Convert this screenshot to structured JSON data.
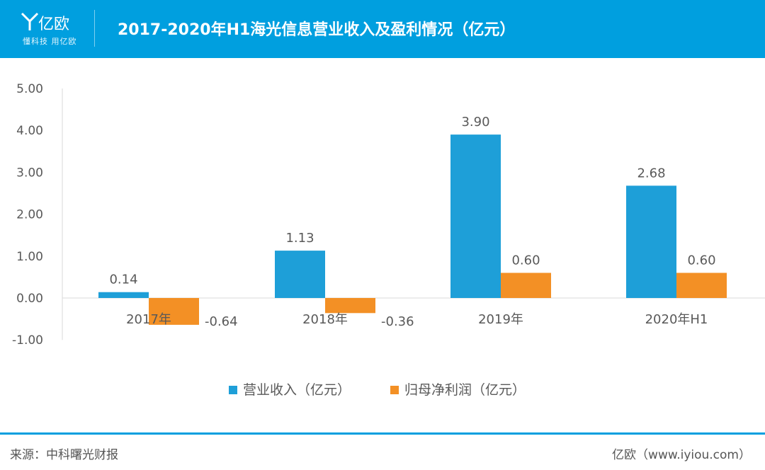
{
  "header": {
    "brand": "亿欧",
    "slogan": "懂科技 用亿欧",
    "title": "2017-2020年H1海光信息营业收入及盈利情况（亿元）"
  },
  "chart_data": {
    "type": "bar",
    "categories": [
      "2017年",
      "2018年",
      "2019年",
      "2020年H1"
    ],
    "series": [
      {
        "name": "营业收入（亿元）",
        "values": [
          0.14,
          1.13,
          3.9,
          2.68
        ],
        "labels": [
          "0.14",
          "1.13",
          "3.90",
          "2.68"
        ],
        "color": "#1e9fd8"
      },
      {
        "name": "归母净利润（亿元）",
        "values": [
          -0.64,
          -0.36,
          0.6,
          0.6
        ],
        "labels": [
          "-0.64",
          "-0.36",
          "0.60",
          "0.60"
        ],
        "color": "#f39025"
      }
    ],
    "ylim": [
      -1.0,
      5.0
    ],
    "yticks": [
      -1.0,
      0.0,
      1.0,
      2.0,
      3.0,
      4.0,
      5.0
    ],
    "ytick_labels": [
      "-1.00",
      "0.00",
      "1.00",
      "2.00",
      "3.00",
      "4.00",
      "5.00"
    ],
    "legend_position": "bottom",
    "grid": false
  },
  "footer": {
    "source": "来源：中科曙光财报",
    "site": "亿欧（www.iyiou.com）"
  }
}
